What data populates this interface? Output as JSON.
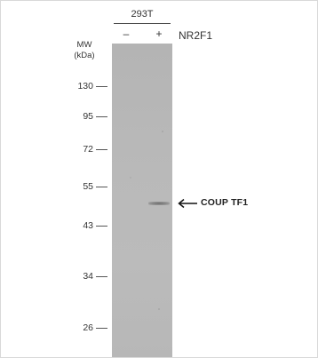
{
  "blot": {
    "cell_line": "293T",
    "lanes": [
      "–",
      "+"
    ],
    "treatment": "NR2F1",
    "mw_header_line1": "MW",
    "mw_header_line2": "(kDa)",
    "mw_markers": [
      "130",
      "95",
      "72",
      "55",
      "43",
      "34",
      "26"
    ],
    "band_label": "COUP TF1"
  }
}
